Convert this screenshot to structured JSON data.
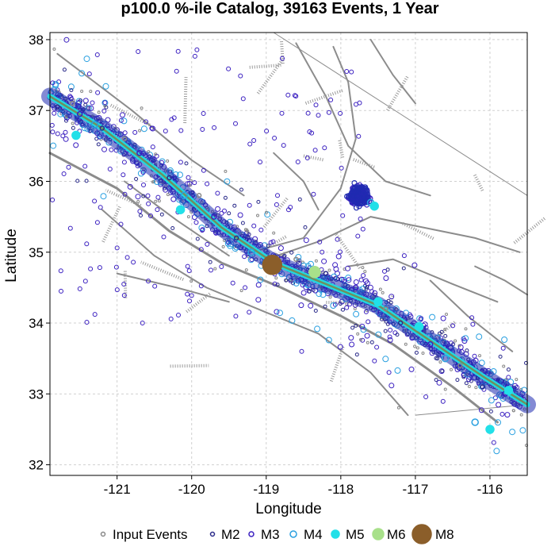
{
  "chart_data": {
    "type": "scatter",
    "title": "p100.0 %-ile Catalog, 39163 Events, 1 Year",
    "xlabel": "Longitude",
    "ylabel": "Latitude",
    "xlim": [
      -121.9,
      -115.5
    ],
    "ylim": [
      31.85,
      38.1
    ],
    "xticks": [
      -121,
      -120,
      -119,
      -118,
      -117,
      -116
    ],
    "yticks": [
      32,
      33,
      34,
      35,
      36,
      37,
      38
    ],
    "grid": true,
    "legend_position": "bottom",
    "colors": {
      "input": "#888888",
      "m2": "#2a2a8a",
      "m3": "#3a1fc0",
      "m4": "#2aa0e0",
      "m5": "#22e0e8",
      "m6": "#a8e08a",
      "m8": "#8b5e2a",
      "fault": "#8c8c8c",
      "band": "#1e2ab0",
      "trace": "#22d8e0"
    },
    "series": [
      {
        "name": "Input Events",
        "magnitude": null,
        "points": [
          [
            -121.6,
            37.1
          ],
          [
            -120.9,
            36.6
          ],
          [
            -119.9,
            35.8
          ],
          [
            -118.6,
            34.9
          ],
          [
            -117.4,
            34.2
          ],
          [
            -116.4,
            33.4
          ]
        ]
      },
      {
        "name": "M2",
        "magnitude": 2,
        "points": [
          [
            -121.8,
            37.05
          ],
          [
            -121.2,
            36.75
          ],
          [
            -120.3,
            36.05
          ],
          [
            -119.4,
            35.2
          ],
          [
            -118.2,
            34.7
          ],
          [
            -117.2,
            34.0
          ],
          [
            -116.1,
            33.1
          ]
        ]
      },
      {
        "name": "M3",
        "magnitude": 3,
        "points": [
          [
            -121.5,
            36.95
          ],
          [
            -120.7,
            36.4
          ],
          [
            -119.7,
            35.5
          ],
          [
            -118.8,
            34.9
          ],
          [
            -117.8,
            34.5
          ],
          [
            -116.8,
            33.7
          ],
          [
            -115.8,
            33.0
          ]
        ]
      },
      {
        "name": "M4",
        "magnitude": 4,
        "points": [
          [
            -121.3,
            36.8
          ],
          [
            -120.1,
            35.8
          ],
          [
            -119.2,
            35.0
          ],
          [
            -117.6,
            35.7
          ],
          [
            -116.6,
            33.5
          ],
          [
            -116.2,
            32.6
          ]
        ]
      },
      {
        "name": "M5",
        "magnitude": 5,
        "points": [
          [
            -121.55,
            36.65
          ],
          [
            -120.15,
            35.6
          ],
          [
            -117.55,
            35.65
          ],
          [
            -117.5,
            34.3
          ],
          [
            -116.95,
            33.95
          ],
          [
            -116.0,
            32.5
          ],
          [
            -115.75,
            33.05
          ]
        ]
      },
      {
        "name": "M6",
        "magnitude": 6,
        "points": [
          [
            -118.35,
            34.72
          ]
        ]
      },
      {
        "name": "M8",
        "magnitude": 8,
        "points": [
          [
            -118.92,
            34.82
          ]
        ]
      }
    ],
    "cluster": {
      "center": [
        -117.75,
        35.8
      ]
    }
  }
}
